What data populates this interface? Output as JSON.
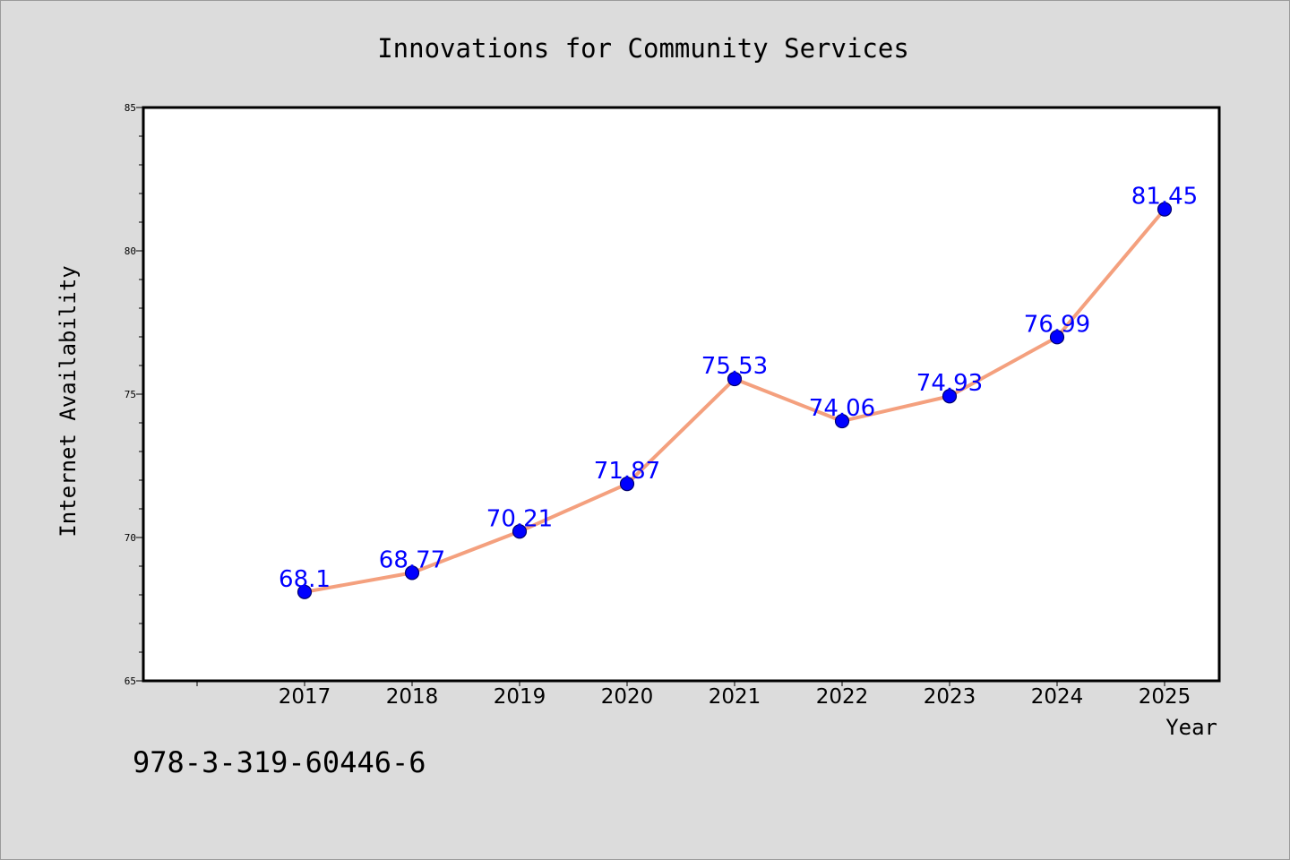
{
  "chart_data": {
    "type": "line",
    "title": "Innovations for Community Services",
    "xlabel": "Year",
    "ylabel": "Internet Availability",
    "categories": [
      "2017",
      "2018",
      "2019",
      "2020",
      "2021",
      "2022",
      "2023",
      "2024",
      "2025"
    ],
    "series": [
      {
        "values": [
          68.1,
          68.77,
          70.21,
          71.87,
          75.53,
          74.06,
          74.93,
          76.99,
          81.45
        ]
      }
    ],
    "data_labels": [
      "68.1",
      "68.77",
      "70.21",
      "71.87",
      "75.53",
      "74.06",
      "74.93",
      "76.99",
      "81.45"
    ],
    "ylim": [
      65,
      85
    ],
    "yticks": [
      "65",
      "70",
      "75",
      "80",
      "85"
    ],
    "grid": false,
    "line_color": "#f4a07e",
    "marker_color": "#0000ff",
    "label_color": "#0000ff",
    "plot_background": "#ffffff",
    "figure_background": "#dcdcdc"
  },
  "footer": {
    "code": "978-3-319-60446-6"
  }
}
